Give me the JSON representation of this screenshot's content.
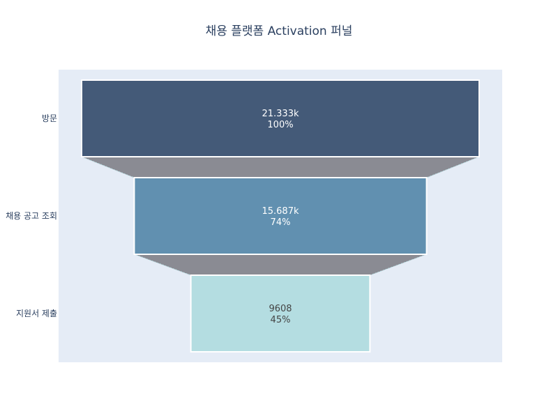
{
  "chart_data": {
    "type": "funnel",
    "title": "채용 플랫폼 Activation 퍼널",
    "categories": [
      "방문",
      "채용 공고 조회",
      "지원서 제출"
    ],
    "values": [
      21333,
      15687,
      9608
    ],
    "value_labels": [
      "21.333k",
      "15.687k",
      "9608"
    ],
    "percent_labels": [
      "100%",
      "74%",
      "45%"
    ],
    "colors": [
      "#445a78",
      "#6190b0",
      "#b4dde1"
    ],
    "label_colors": [
      "#ffffff",
      "#ffffff",
      "#444444"
    ],
    "connector_color": "#8a8b93",
    "plot_background": "#e5ecf6"
  }
}
